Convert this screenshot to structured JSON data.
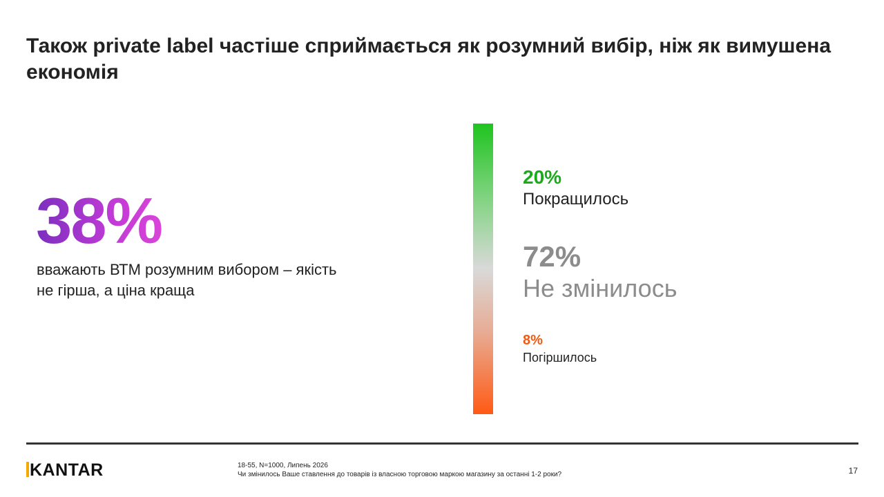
{
  "title": "Також private label частіше сприймається як розумний вибір, ніж як вимушена економія",
  "highlight": {
    "value": "38%",
    "description": "вважають ВТМ розумним вибором – якість не гірша, а ціна краща"
  },
  "breakdown": [
    {
      "value": "20%",
      "label": "Покращилось",
      "color": "#1aaa1a"
    },
    {
      "value": "72%",
      "label": "Не змінилось",
      "color": "#8c8c8c"
    },
    {
      "value": "8%",
      "label": "Погіршилось",
      "color": "#f05a14"
    }
  ],
  "colors": {
    "gradient_top": "#1fc41f",
    "gradient_mid": "#d9d9d9",
    "gradient_bottom": "#ff5a14",
    "accent_purple": "#9b35c9"
  },
  "footer": {
    "logo": "KANTAR",
    "sample": "18-55, N=1000, Липень 2026",
    "question": "Чи змінилось Ваше ставлення до товарів із власною торговою маркою магазину за останні 1-2 роки?",
    "page_number": "17"
  }
}
